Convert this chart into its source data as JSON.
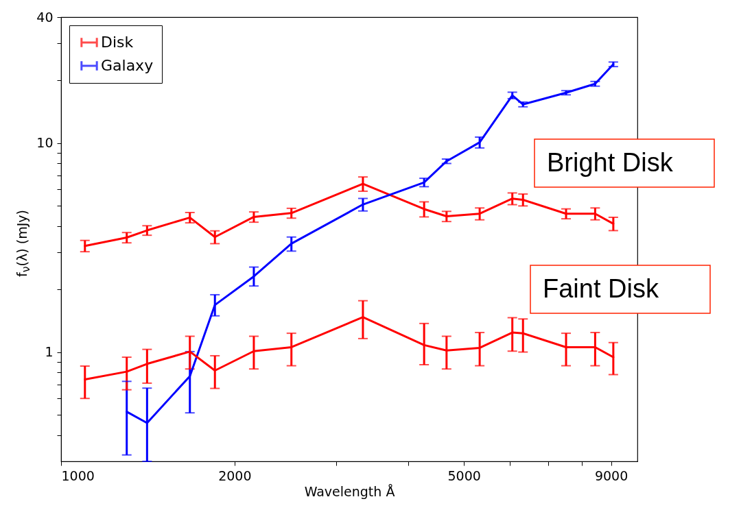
{
  "chart_data": {
    "type": "line",
    "xlabel": "Wavelength Å",
    "ylabel": "f$_{ν}$(λ) (mJy)",
    "log": "xy",
    "grid": false,
    "legend": "top left",
    "line_style": "solid",
    "x": [
      1100,
      1300,
      1410,
      1673,
      1849,
      2160,
      2510,
      3340,
      4265,
      4665,
      5325,
      6067,
      6331,
      7520,
      8446,
      9082
    ],
    "xlim": [
      1000,
      10000
    ],
    "xticks": [
      1000,
      2000,
      {
        "value": 3000,
        "label": null
      },
      {
        "value": 4000,
        "label": null
      },
      5000,
      {
        "value": 6000,
        "label": null
      },
      {
        "value": 7000,
        "label": null
      },
      {
        "value": 8000,
        "label": null
      },
      9000
    ],
    "ylim": [
      0.3,
      40
    ],
    "yticks": [
      {
        "value": 0.4,
        "label": null
      },
      {
        "value": 0.5,
        "label": null
      },
      {
        "value": 0.6,
        "label": null
      },
      {
        "value": 0.7,
        "label": null
      },
      {
        "value": 0.8,
        "label": null
      },
      {
        "value": 0.9,
        "label": null
      },
      1,
      {
        "value": 2,
        "label": null
      },
      {
        "value": 3,
        "label": null
      },
      {
        "value": 4,
        "label": null
      },
      {
        "value": 5,
        "label": null
      },
      {
        "value": 6,
        "label": null
      },
      {
        "value": 7,
        "label": null
      },
      {
        "value": 8,
        "label": null
      },
      {
        "value": 9,
        "label": null
      },
      10,
      {
        "value": 20,
        "label": null
      },
      {
        "value": 30,
        "label": null
      },
      40
    ],
    "series": [
      {
        "name": "Disk",
        "color": "#ff0000",
        "values": [
          3.22,
          3.53,
          3.82,
          4.4,
          3.55,
          4.43,
          4.62,
          6.38,
          4.83,
          4.46,
          4.59,
          5.42,
          5.35,
          4.59,
          4.59,
          4.11
        ],
        "errors": [
          0.2,
          0.2,
          0.2,
          0.25,
          0.25,
          0.25,
          0.25,
          0.5,
          0.4,
          0.25,
          0.3,
          0.35,
          0.35,
          0.25,
          0.3,
          0.3
        ]
      },
      {
        "name": "Galaxy",
        "color": "#0000ff",
        "x": [
          1300,
          1410,
          1673,
          1849,
          2160,
          2510,
          3340,
          4265,
          4665,
          5325,
          6067,
          6331,
          7520,
          8446,
          9082
        ],
        "values": [
          0.518,
          0.458,
          0.767,
          1.68,
          2.3,
          3.3,
          5.08,
          6.48,
          8.18,
          10.07,
          16.9,
          15.3,
          17.4,
          19.2,
          23.8
        ],
        "errors": [
          [
            0.322,
            0.724
          ],
          [
            0.3,
            0.672
          ],
          [
            0.512,
            1.005
          ],
          [
            1.49,
            1.88
          ],
          [
            2.07,
            2.55
          ],
          [
            3.04,
            3.55
          ],
          0.35,
          0.3,
          0.2,
          0.6,
          0.6,
          0.4,
          0.4,
          0.5,
          0.6
        ]
      },
      {
        "color": "#ff0000",
        "values": [
          0.74,
          0.806,
          0.878,
          1.005,
          0.816,
          1.01,
          1.055,
          1.47,
          1.08,
          1.017,
          1.047,
          1.24,
          1.23,
          1.055,
          1.055,
          0.945
        ],
        "errors": [
          [
            0.6,
            0.857
          ],
          [
            0.66,
            0.945
          ],
          [
            0.71,
            1.03
          ],
          [
            0.83,
            1.19
          ],
          [
            0.67,
            0.96
          ],
          [
            0.83,
            1.19
          ],
          [
            0.86,
            1.23
          ],
          [
            1.16,
            1.76
          ],
          [
            0.87,
            1.37
          ],
          [
            0.83,
            1.19
          ],
          [
            0.86,
            1.24
          ],
          [
            1.01,
            1.46
          ],
          [
            1.0,
            1.44
          ],
          [
            0.86,
            1.23
          ],
          [
            0.86,
            1.24
          ],
          [
            0.78,
            1.11
          ]
        ]
      }
    ],
    "annotations": [
      "Bright Disk",
      "Faint Disk"
    ]
  }
}
